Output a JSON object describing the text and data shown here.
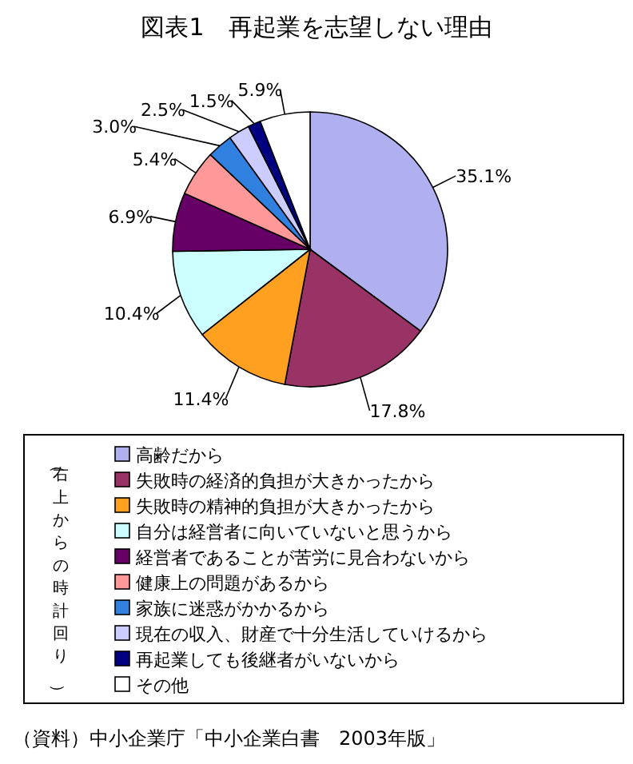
{
  "chart_data": {
    "type": "pie",
    "title": "図表1　再起業を志望しない理由",
    "categories": [
      "高齢だから",
      "失敗時の経済的負担が大きかったから",
      "失敗時の精神的負担が大きかったから",
      "自分は経営者に向いていないと思うから",
      "経営者であることが苦労に見合わないから",
      "健康上の問題があるから",
      "家族に迷惑がかかるから",
      "現在の収入、財産で十分生活していけるから",
      "再起業しても後継者がいないから",
      "その他"
    ],
    "values": [
      35.1,
      17.8,
      11.4,
      10.4,
      6.9,
      5.4,
      3.0,
      2.5,
      1.5,
      5.9
    ],
    "value_labels": [
      "35.1%",
      "17.8%",
      "11.4%",
      "10.4%",
      "6.9%",
      "5.4%",
      "3.0%",
      "2.5%",
      "1.5%",
      "5.9%"
    ],
    "colors": [
      "#b0b0f0",
      "#993366",
      "#ffa020",
      "#ccffff",
      "#660066",
      "#ff9999",
      "#3080e0",
      "#ccccff",
      "#000080",
      "#ffffff"
    ],
    "legend": "bottom",
    "legend_title": "（右上からの時計回り）",
    "annotations": [
      "（資料）中小企業庁「中小企業白書　2003年版」"
    ]
  }
}
